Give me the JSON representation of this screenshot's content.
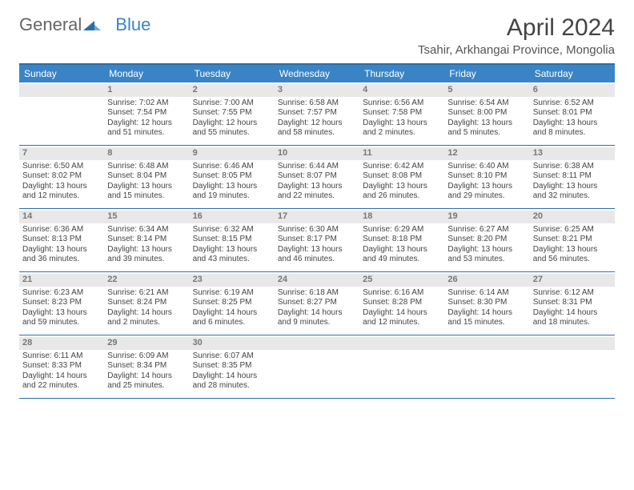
{
  "logo": {
    "general": "General",
    "blue": "Blue"
  },
  "header": {
    "month_title": "April 2024",
    "location": "Tsahir, Arkhangai Province, Mongolia"
  },
  "weekdays": [
    "Sunday",
    "Monday",
    "Tuesday",
    "Wednesday",
    "Thursday",
    "Friday",
    "Saturday"
  ],
  "colors": {
    "header_blue": "#3a84c6",
    "rule_blue": "#2b6fa8",
    "grey_band": "#e8e8e8"
  },
  "weeks": [
    [
      {
        "day": "",
        "sunrise": "",
        "sunset": "",
        "daylight": ""
      },
      {
        "day": "1",
        "sunrise": "Sunrise: 7:02 AM",
        "sunset": "Sunset: 7:54 PM",
        "daylight": "Daylight: 12 hours and 51 minutes."
      },
      {
        "day": "2",
        "sunrise": "Sunrise: 7:00 AM",
        "sunset": "Sunset: 7:55 PM",
        "daylight": "Daylight: 12 hours and 55 minutes."
      },
      {
        "day": "3",
        "sunrise": "Sunrise: 6:58 AM",
        "sunset": "Sunset: 7:57 PM",
        "daylight": "Daylight: 12 hours and 58 minutes."
      },
      {
        "day": "4",
        "sunrise": "Sunrise: 6:56 AM",
        "sunset": "Sunset: 7:58 PM",
        "daylight": "Daylight: 13 hours and 2 minutes."
      },
      {
        "day": "5",
        "sunrise": "Sunrise: 6:54 AM",
        "sunset": "Sunset: 8:00 PM",
        "daylight": "Daylight: 13 hours and 5 minutes."
      },
      {
        "day": "6",
        "sunrise": "Sunrise: 6:52 AM",
        "sunset": "Sunset: 8:01 PM",
        "daylight": "Daylight: 13 hours and 8 minutes."
      }
    ],
    [
      {
        "day": "7",
        "sunrise": "Sunrise: 6:50 AM",
        "sunset": "Sunset: 8:02 PM",
        "daylight": "Daylight: 13 hours and 12 minutes."
      },
      {
        "day": "8",
        "sunrise": "Sunrise: 6:48 AM",
        "sunset": "Sunset: 8:04 PM",
        "daylight": "Daylight: 13 hours and 15 minutes."
      },
      {
        "day": "9",
        "sunrise": "Sunrise: 6:46 AM",
        "sunset": "Sunset: 8:05 PM",
        "daylight": "Daylight: 13 hours and 19 minutes."
      },
      {
        "day": "10",
        "sunrise": "Sunrise: 6:44 AM",
        "sunset": "Sunset: 8:07 PM",
        "daylight": "Daylight: 13 hours and 22 minutes."
      },
      {
        "day": "11",
        "sunrise": "Sunrise: 6:42 AM",
        "sunset": "Sunset: 8:08 PM",
        "daylight": "Daylight: 13 hours and 26 minutes."
      },
      {
        "day": "12",
        "sunrise": "Sunrise: 6:40 AM",
        "sunset": "Sunset: 8:10 PM",
        "daylight": "Daylight: 13 hours and 29 minutes."
      },
      {
        "day": "13",
        "sunrise": "Sunrise: 6:38 AM",
        "sunset": "Sunset: 8:11 PM",
        "daylight": "Daylight: 13 hours and 32 minutes."
      }
    ],
    [
      {
        "day": "14",
        "sunrise": "Sunrise: 6:36 AM",
        "sunset": "Sunset: 8:13 PM",
        "daylight": "Daylight: 13 hours and 36 minutes."
      },
      {
        "day": "15",
        "sunrise": "Sunrise: 6:34 AM",
        "sunset": "Sunset: 8:14 PM",
        "daylight": "Daylight: 13 hours and 39 minutes."
      },
      {
        "day": "16",
        "sunrise": "Sunrise: 6:32 AM",
        "sunset": "Sunset: 8:15 PM",
        "daylight": "Daylight: 13 hours and 43 minutes."
      },
      {
        "day": "17",
        "sunrise": "Sunrise: 6:30 AM",
        "sunset": "Sunset: 8:17 PM",
        "daylight": "Daylight: 13 hours and 46 minutes."
      },
      {
        "day": "18",
        "sunrise": "Sunrise: 6:29 AM",
        "sunset": "Sunset: 8:18 PM",
        "daylight": "Daylight: 13 hours and 49 minutes."
      },
      {
        "day": "19",
        "sunrise": "Sunrise: 6:27 AM",
        "sunset": "Sunset: 8:20 PM",
        "daylight": "Daylight: 13 hours and 53 minutes."
      },
      {
        "day": "20",
        "sunrise": "Sunrise: 6:25 AM",
        "sunset": "Sunset: 8:21 PM",
        "daylight": "Daylight: 13 hours and 56 minutes."
      }
    ],
    [
      {
        "day": "21",
        "sunrise": "Sunrise: 6:23 AM",
        "sunset": "Sunset: 8:23 PM",
        "daylight": "Daylight: 13 hours and 59 minutes."
      },
      {
        "day": "22",
        "sunrise": "Sunrise: 6:21 AM",
        "sunset": "Sunset: 8:24 PM",
        "daylight": "Daylight: 14 hours and 2 minutes."
      },
      {
        "day": "23",
        "sunrise": "Sunrise: 6:19 AM",
        "sunset": "Sunset: 8:25 PM",
        "daylight": "Daylight: 14 hours and 6 minutes."
      },
      {
        "day": "24",
        "sunrise": "Sunrise: 6:18 AM",
        "sunset": "Sunset: 8:27 PM",
        "daylight": "Daylight: 14 hours and 9 minutes."
      },
      {
        "day": "25",
        "sunrise": "Sunrise: 6:16 AM",
        "sunset": "Sunset: 8:28 PM",
        "daylight": "Daylight: 14 hours and 12 minutes."
      },
      {
        "day": "26",
        "sunrise": "Sunrise: 6:14 AM",
        "sunset": "Sunset: 8:30 PM",
        "daylight": "Daylight: 14 hours and 15 minutes."
      },
      {
        "day": "27",
        "sunrise": "Sunrise: 6:12 AM",
        "sunset": "Sunset: 8:31 PM",
        "daylight": "Daylight: 14 hours and 18 minutes."
      }
    ],
    [
      {
        "day": "28",
        "sunrise": "Sunrise: 6:11 AM",
        "sunset": "Sunset: 8:33 PM",
        "daylight": "Daylight: 14 hours and 22 minutes."
      },
      {
        "day": "29",
        "sunrise": "Sunrise: 6:09 AM",
        "sunset": "Sunset: 8:34 PM",
        "daylight": "Daylight: 14 hours and 25 minutes."
      },
      {
        "day": "30",
        "sunrise": "Sunrise: 6:07 AM",
        "sunset": "Sunset: 8:35 PM",
        "daylight": "Daylight: 14 hours and 28 minutes."
      },
      {
        "day": "",
        "sunrise": "",
        "sunset": "",
        "daylight": ""
      },
      {
        "day": "",
        "sunrise": "",
        "sunset": "",
        "daylight": ""
      },
      {
        "day": "",
        "sunrise": "",
        "sunset": "",
        "daylight": ""
      },
      {
        "day": "",
        "sunrise": "",
        "sunset": "",
        "daylight": ""
      }
    ]
  ]
}
